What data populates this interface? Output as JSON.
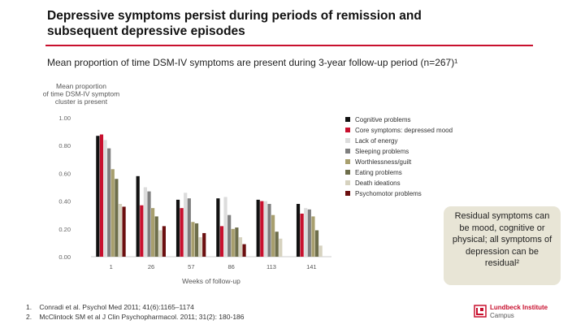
{
  "header": {
    "title_line1": "Depressive symptoms persist during periods of remission and",
    "title_line2": "subsequent depressive episodes",
    "subtitle": "Mean proportion of time DSM-IV symptoms are present during 3-year follow-up period (n=267)¹"
  },
  "colors": {
    "accent": "#c8102e",
    "callout_bg": "#e8e5d6"
  },
  "chart_data": {
    "type": "bar",
    "title": "",
    "ylabel_lines": [
      "Mean proportion",
      "of time DSM-IV symptom",
      "cluster is present"
    ],
    "xlabel": "Weeks of follow-up",
    "categories": [
      "1",
      "26",
      "57",
      "86",
      "113",
      "141"
    ],
    "ylim": [
      0,
      1
    ],
    "yticks": [
      "0.00",
      "0.20",
      "0.40",
      "0.60",
      "0.80",
      "1.00"
    ],
    "ytick_values": [
      0,
      0.2,
      0.4,
      0.6,
      0.8,
      1.0
    ],
    "legend_position": "right",
    "series": [
      {
        "name": "Cognitive problems",
        "color": "#111111",
        "values": [
          0.87,
          0.58,
          0.41,
          0.42,
          0.41,
          0.38
        ]
      },
      {
        "name": "Core symptoms: depressed mood",
        "color": "#c8102e",
        "values": [
          0.88,
          0.37,
          0.35,
          0.22,
          0.4,
          0.31
        ]
      },
      {
        "name": "Lack of energy",
        "color": "#dcdcdc",
        "values": [
          0.84,
          0.5,
          0.46,
          0.43,
          0.4,
          0.35
        ]
      },
      {
        "name": "Sleeping problems",
        "color": "#7f7f7f",
        "values": [
          0.78,
          0.47,
          0.42,
          0.3,
          0.38,
          0.34
        ]
      },
      {
        "name": "Worthlessness/guilt",
        "color": "#a89f6e",
        "values": [
          0.63,
          0.35,
          0.25,
          0.2,
          0.3,
          0.29
        ]
      },
      {
        "name": "Eating problems",
        "color": "#6e6e4b",
        "values": [
          0.56,
          0.29,
          0.24,
          0.21,
          0.18,
          0.19
        ]
      },
      {
        "name": "Death ideations",
        "color": "#d6d2bf",
        "values": [
          0.38,
          0.19,
          0.14,
          0.14,
          0.13,
          0.08
        ]
      },
      {
        "name": "Psychomotor problems",
        "color": "#6b0f0f",
        "values": [
          0.36,
          0.22,
          0.17,
          0.09,
          0.0,
          0.0
        ]
      }
    ]
  },
  "callout": {
    "text": "Residual symptoms can be mood, cognitive or physical; all symptoms of depression can be residual²"
  },
  "references": [
    {
      "num": "1.",
      "text": "Conradi et al. Psychol Med 2011; 41(6):1165–1174"
    },
    {
      "num": "2.",
      "text": "McClintock SM et al J Clin Psychopharmacol. 2011; 31(2): 180-186"
    }
  ],
  "logo": {
    "line1": "Lundbeck Institute",
    "line2": "Campus"
  }
}
